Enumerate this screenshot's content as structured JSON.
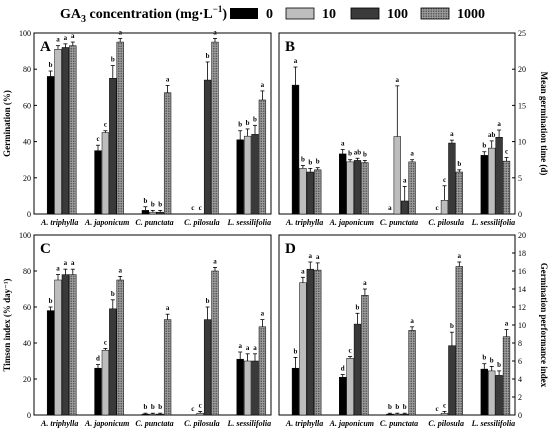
{
  "legend": {
    "label": "GA",
    "subscript": "3",
    "rest": " concentration (mg·L",
    "superscript": "−1",
    "close": ")",
    "items": [
      {
        "label": "0",
        "fill": "#000000"
      },
      {
        "label": "10",
        "fill": "#bdbdbd"
      },
      {
        "label": "100",
        "fill": "#3a3a3a"
      },
      {
        "label": "1000",
        "fill": "#8c8c8c",
        "pattern": "dots"
      }
    ]
  },
  "chart_data": [
    {
      "panel": "A",
      "type": "bar",
      "axis": "left",
      "ylabel": "Germination (%)",
      "ylim": [
        0,
        100
      ],
      "yticks": [
        0,
        20,
        40,
        60,
        80,
        100
      ],
      "categories": [
        "A. triphylla",
        "A. japonicum",
        "C. punctata",
        "C. pilosula",
        "L. sessilifolia"
      ],
      "series": [
        {
          "name": "0",
          "values": [
            76,
            35,
            2,
            0,
            41
          ],
          "errors": [
            3,
            3,
            2,
            0,
            5
          ],
          "letters": [
            "b",
            "c",
            "b",
            "c",
            "b"
          ]
        },
        {
          "name": "10",
          "values": [
            91,
            45,
            1,
            0,
            43
          ],
          "errors": [
            2,
            1,
            1,
            0,
            4
          ],
          "letters": [
            "a",
            "c",
            "b",
            "c",
            "b"
          ]
        },
        {
          "name": "100",
          "values": [
            92,
            75,
            1,
            74,
            44
          ],
          "errors": [
            2,
            7,
            1,
            10,
            5
          ],
          "letters": [
            "a",
            "b",
            "b",
            "b",
            "b"
          ]
        },
        {
          "name": "1000",
          "values": [
            93,
            95,
            67,
            95,
            63
          ],
          "errors": [
            2,
            2,
            4,
            2,
            5
          ],
          "letters": [
            "a",
            "a",
            "a",
            "a",
            "a"
          ]
        }
      ]
    },
    {
      "panel": "B",
      "type": "bar",
      "axis": "right",
      "ylabel": "Mean germination time (d)",
      "ylim": [
        0,
        25
      ],
      "yticks": [
        0,
        5,
        10,
        15,
        20,
        25
      ],
      "categories": [
        "A. triphylla",
        "A. japonicum",
        "C. punctata",
        "C. pilosula",
        "L. sessilifolia"
      ],
      "series": [
        {
          "name": "0",
          "values": [
            17.8,
            8.3,
            0,
            0,
            8.1
          ],
          "errors": [
            2.5,
            0.6,
            0,
            0,
            0.5
          ],
          "letters": [
            "a",
            "a",
            "a",
            "c",
            "b"
          ]
        },
        {
          "name": "10",
          "values": [
            6.3,
            7.2,
            10.7,
            1.9,
            9.1
          ],
          "errors": [
            0.4,
            0.3,
            7,
            2,
            1
          ],
          "letters": [
            "b",
            "b",
            "a",
            "c",
            "ab"
          ]
        },
        {
          "name": "100",
          "values": [
            5.8,
            7.4,
            1.8,
            9.8,
            10.6
          ],
          "errors": [
            0.5,
            0.3,
            2,
            0.4,
            1
          ],
          "letters": [
            "b",
            "ab",
            "a",
            "a",
            "a"
          ]
        },
        {
          "name": "1000",
          "values": [
            6.1,
            7.1,
            7.2,
            5.8,
            7.3
          ],
          "errors": [
            0.3,
            0.3,
            0.3,
            0.3,
            0.5
          ],
          "letters": [
            "b",
            "b",
            "a",
            "b",
            "c"
          ]
        }
      ]
    },
    {
      "panel": "C",
      "type": "bar",
      "axis": "left",
      "ylabel": "Timson index (% day⁻¹)",
      "ylim": [
        0,
        100
      ],
      "yticks": [
        0,
        20,
        40,
        60,
        80,
        100
      ],
      "categories": [
        "A. triphylla",
        "A. japonicum",
        "C. punctata",
        "C. pilosula",
        "L. sessilifolia"
      ],
      "series": [
        {
          "name": "0",
          "values": [
            58,
            26,
            0.5,
            0,
            31
          ],
          "errors": [
            2,
            2,
            0.5,
            0,
            4
          ],
          "letters": [
            "b",
            "d",
            "b",
            "c",
            "a"
          ]
        },
        {
          "name": "10",
          "values": [
            75,
            36,
            0.5,
            1,
            30
          ],
          "errors": [
            3,
            1,
            0.5,
            1,
            4
          ],
          "letters": [
            "a",
            "c",
            "b",
            "c",
            "a"
          ]
        },
        {
          "name": "100",
          "values": [
            78,
            59,
            0.5,
            53,
            30
          ],
          "errors": [
            3,
            5,
            0.5,
            7,
            4
          ],
          "letters": [
            "a",
            "b",
            "b",
            "b",
            "a"
          ]
        },
        {
          "name": "1000",
          "values": [
            78,
            75,
            53,
            80,
            49
          ],
          "errors": [
            3,
            2,
            3,
            2,
            4
          ],
          "letters": [
            "a",
            "a",
            "a",
            "a",
            "a"
          ]
        }
      ]
    },
    {
      "panel": "D",
      "type": "bar",
      "axis": "right",
      "ylabel": "Germination performance index",
      "ylim": [
        0,
        20
      ],
      "yticks": [
        0,
        2,
        4,
        6,
        8,
        10,
        12,
        14,
        16,
        18,
        20
      ],
      "categories": [
        "A. triphylla",
        "A. japonicum",
        "C. punctata",
        "C. pilosula",
        "L. sessilifolia"
      ],
      "series": [
        {
          "name": "0",
          "values": [
            5.2,
            4.2,
            0.1,
            0,
            5.1
          ],
          "errors": [
            1.2,
            0.3,
            0.1,
            0,
            0.6
          ],
          "letters": [
            "b",
            "d",
            "b",
            "c",
            "b"
          ]
        },
        {
          "name": "10",
          "values": [
            14.7,
            6.3,
            0.1,
            0.2,
            4.9
          ],
          "errors": [
            0.6,
            0.2,
            0.1,
            0.2,
            0.5
          ],
          "letters": [
            "a",
            "c",
            "b",
            "c",
            "b"
          ]
        },
        {
          "name": "100",
          "values": [
            16.2,
            10.1,
            0.1,
            7.7,
            4.4
          ],
          "errors": [
            0.8,
            1.2,
            0.1,
            1.5,
            0.5
          ],
          "letters": [
            "a",
            "b",
            "b",
            "b",
            "b"
          ]
        },
        {
          "name": "1000",
          "values": [
            16.1,
            13.3,
            9.4,
            16.5,
            8.7
          ],
          "errors": [
            0.8,
            0.7,
            0.4,
            0.5,
            0.8
          ],
          "letters": [
            "a",
            "a",
            "a",
            "a",
            "a"
          ]
        }
      ]
    }
  ]
}
